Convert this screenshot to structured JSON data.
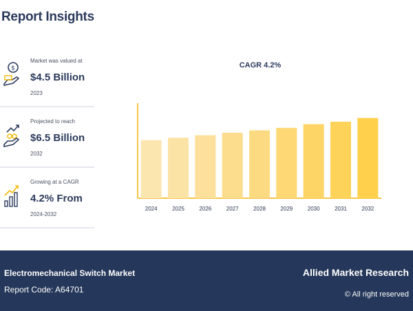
{
  "header": {
    "title": "Report Insights"
  },
  "stats": [
    {
      "label": "Market was valued at",
      "value": "$4.5 Billion",
      "sub": "2023",
      "icon": "money-hand-icon"
    },
    {
      "label": "Projected to reach",
      "value": "$6.5 Billion",
      "sub": "2032",
      "icon": "growth-coins-hand-icon"
    },
    {
      "label": "Growing at a CAGR",
      "value": "4.2% From",
      "sub": "2024-2032",
      "icon": "rising-bars-icon"
    }
  ],
  "chart_data": {
    "type": "bar",
    "title": "CAGR 4.2%",
    "categories": [
      "2024",
      "2025",
      "2026",
      "2027",
      "2028",
      "2029",
      "2030",
      "2031",
      "2032"
    ],
    "values": [
      4.7,
      4.9,
      5.1,
      5.3,
      5.5,
      5.7,
      6.0,
      6.2,
      6.5
    ],
    "ylim": [
      0,
      7.7
    ],
    "xlabel": "",
    "ylabel": "",
    "grid": false,
    "colors": [
      "#fbe6b0",
      "#fbe3a6",
      "#fce09b",
      "#fcdd8e",
      "#fcda82",
      "#fdd874",
      "#fdd566",
      "#fed35a",
      "#fed04c"
    ],
    "axis_color": "#f6c544"
  },
  "footer": {
    "report_name": "Electromechanical Switch Market",
    "report_code": "Report Code: A64701",
    "brand": "Allied Market Research",
    "copyright": "© All right reserved"
  }
}
